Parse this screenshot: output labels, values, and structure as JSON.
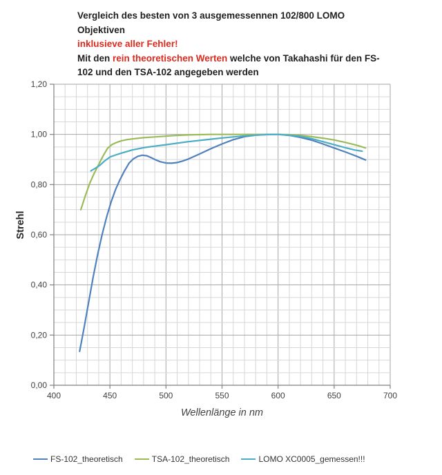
{
  "header": {
    "line1": "Vergleich des besten von 3 ausgemessennen 102/800 LOMO",
    "line2": "Objektiven",
    "line3": "inklusieve aller Fehler!",
    "line4_part1": "Mit den ",
    "line4_red": "rein theoretischen Werten",
    "line4_part2": " welche von Takahashi für den FS-",
    "line5": "102 und den TSA-102 angegeben werden",
    "red_color": "#dc2a1e",
    "text_color": "#1f1f1f"
  },
  "chart_data": {
    "type": "line",
    "title": "",
    "xlabel": "Wellenlänge in nm",
    "ylabel": "Strehl",
    "xlim": [
      400,
      700
    ],
    "ylim": [
      0,
      1.2
    ],
    "x_ticks": [
      400,
      450,
      500,
      550,
      600,
      650,
      700
    ],
    "x_tick_labels": [
      "400",
      "450",
      "500",
      "550",
      "600",
      "650",
      "700"
    ],
    "y_ticks": [
      0,
      0.2,
      0.4,
      0.6,
      0.8,
      1.0,
      1.2
    ],
    "y_tick_labels": [
      "0,00",
      "0,20",
      "0,40",
      "0,60",
      "0,80",
      "1,00",
      "1,20"
    ],
    "x_minor_step": 10,
    "y_minor_step": 0.05,
    "grid": true,
    "legend_position": "bottom",
    "colors": {
      "grid_minor": "#d6d6d6",
      "grid_major": "#a6a6a6",
      "axis": "#7f7f7f",
      "tick_text": "#404040"
    },
    "series": [
      {
        "name": "FS-102_theoretisch",
        "color": "#4F81BD",
        "points": [
          [
            423,
            0.135
          ],
          [
            427,
            0.23
          ],
          [
            431,
            0.33
          ],
          [
            435,
            0.43
          ],
          [
            439,
            0.52
          ],
          [
            443,
            0.6
          ],
          [
            447,
            0.67
          ],
          [
            451,
            0.73
          ],
          [
            455,
            0.78
          ],
          [
            459,
            0.82
          ],
          [
            463,
            0.855
          ],
          [
            467,
            0.885
          ],
          [
            471,
            0.903
          ],
          [
            475,
            0.913
          ],
          [
            479,
            0.917
          ],
          [
            483,
            0.915
          ],
          [
            487,
            0.907
          ],
          [
            491,
            0.898
          ],
          [
            495,
            0.891
          ],
          [
            500,
            0.886
          ],
          [
            505,
            0.885
          ],
          [
            510,
            0.888
          ],
          [
            515,
            0.894
          ],
          [
            520,
            0.902
          ],
          [
            530,
            0.922
          ],
          [
            540,
            0.943
          ],
          [
            550,
            0.962
          ],
          [
            560,
            0.979
          ],
          [
            570,
            0.991
          ],
          [
            580,
            0.997
          ],
          [
            590,
            1.0
          ],
          [
            600,
            1.0
          ],
          [
            610,
            0.996
          ],
          [
            620,
            0.988
          ],
          [
            630,
            0.977
          ],
          [
            640,
            0.962
          ],
          [
            650,
            0.946
          ],
          [
            660,
            0.93
          ],
          [
            670,
            0.913
          ],
          [
            678,
            0.898
          ]
        ]
      },
      {
        "name": "TSA-102_theoretisch",
        "color": "#9BBB59",
        "points": [
          [
            424,
            0.7
          ],
          [
            428,
            0.755
          ],
          [
            432,
            0.805
          ],
          [
            436,
            0.845
          ],
          [
            440,
            0.88
          ],
          [
            444,
            0.915
          ],
          [
            448,
            0.945
          ],
          [
            452,
            0.96
          ],
          [
            456,
            0.968
          ],
          [
            460,
            0.974
          ],
          [
            465,
            0.979
          ],
          [
            470,
            0.982
          ],
          [
            480,
            0.987
          ],
          [
            490,
            0.99
          ],
          [
            500,
            0.993
          ],
          [
            510,
            0.996
          ],
          [
            520,
            0.998
          ],
          [
            530,
            0.999
          ],
          [
            540,
            1.0
          ],
          [
            560,
            1.0
          ],
          [
            580,
            1.0
          ],
          [
            600,
            1.0
          ],
          [
            610,
            0.999
          ],
          [
            620,
            0.996
          ],
          [
            630,
            0.991
          ],
          [
            640,
            0.985
          ],
          [
            650,
            0.978
          ],
          [
            660,
            0.968
          ],
          [
            670,
            0.957
          ],
          [
            678,
            0.946
          ]
        ]
      },
      {
        "name": "LOMO XC0005_gemessen!!!",
        "color": "#4BACC6",
        "points": [
          [
            433,
            0.855
          ],
          [
            437,
            0.865
          ],
          [
            441,
            0.877
          ],
          [
            445,
            0.893
          ],
          [
            450,
            0.91
          ],
          [
            455,
            0.918
          ],
          [
            460,
            0.925
          ],
          [
            470,
            0.938
          ],
          [
            480,
            0.947
          ],
          [
            490,
            0.953
          ],
          [
            500,
            0.959
          ],
          [
            510,
            0.965
          ],
          [
            520,
            0.971
          ],
          [
            530,
            0.976
          ],
          [
            540,
            0.981
          ],
          [
            550,
            0.986
          ],
          [
            560,
            0.99
          ],
          [
            570,
            0.994
          ],
          [
            580,
            0.997
          ],
          [
            590,
            0.999
          ],
          [
            600,
            1.0
          ],
          [
            610,
            0.997
          ],
          [
            620,
            0.992
          ],
          [
            630,
            0.983
          ],
          [
            640,
            0.971
          ],
          [
            650,
            0.959
          ],
          [
            660,
            0.947
          ],
          [
            668,
            0.938
          ],
          [
            675,
            0.933
          ]
        ]
      }
    ]
  }
}
